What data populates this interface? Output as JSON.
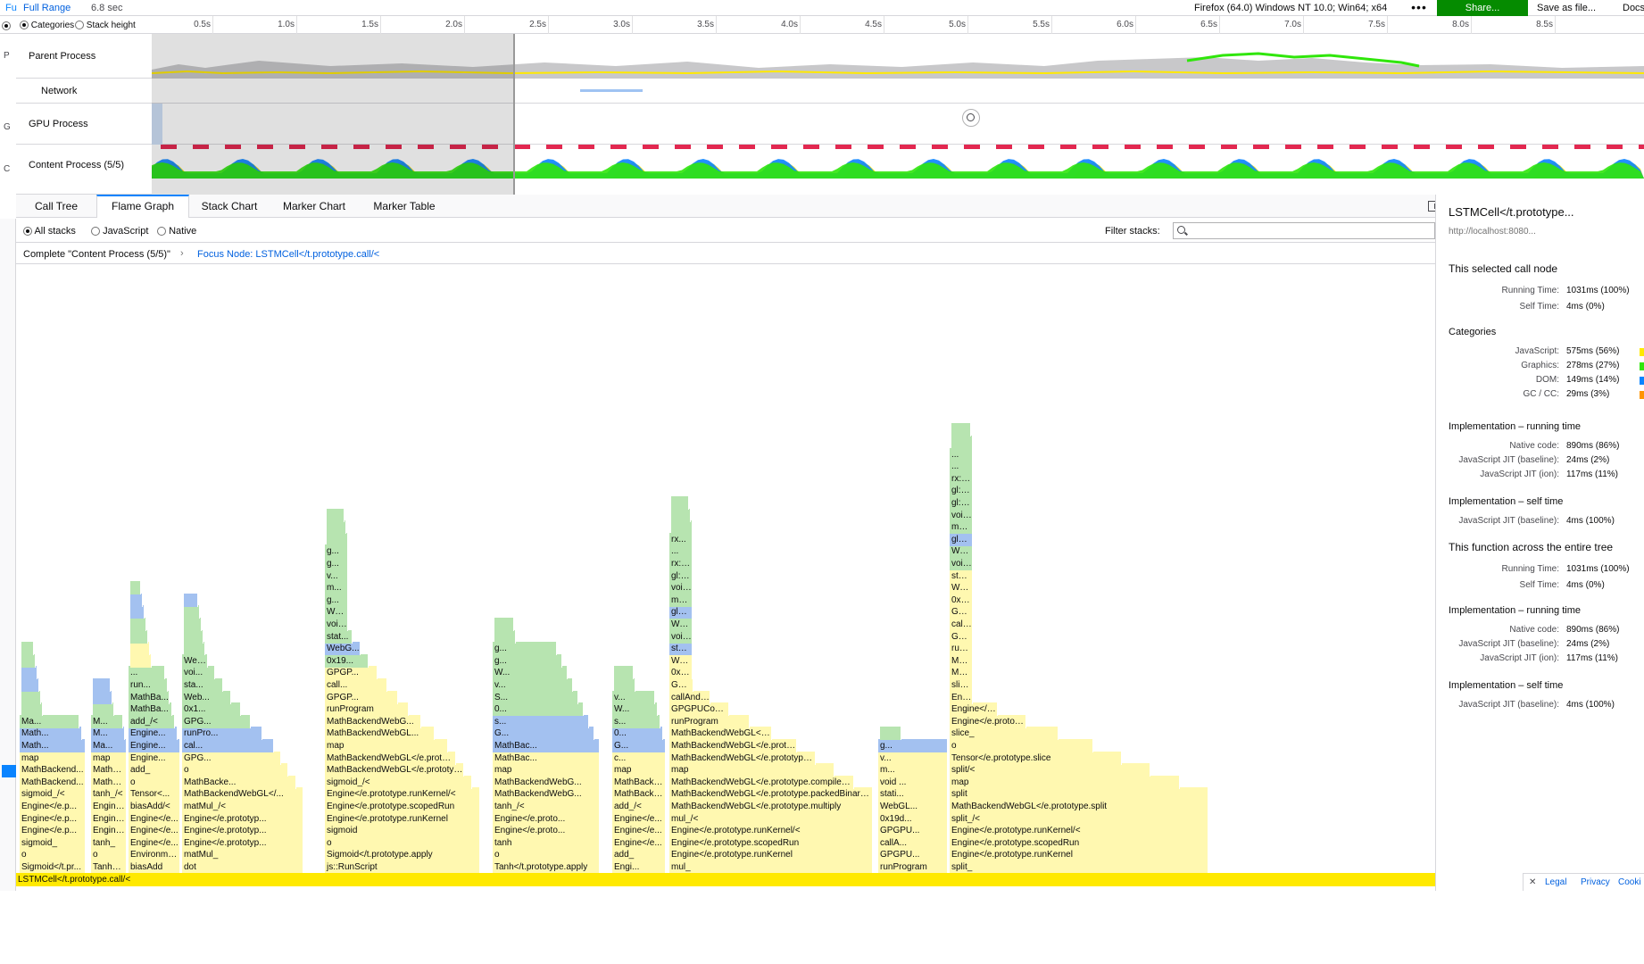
{
  "topbar": {
    "crumb_left": "Fu",
    "range_label": "Full Range",
    "duration": "6.8 sec",
    "platform": "Firefox (64.0) Windows NT 10.0; Win64; x64",
    "more_label": "•••",
    "share_label": "Share...",
    "save_label": "Save as file...",
    "docs_label": "Docs"
  },
  "timeline": {
    "categories_label": "Categories",
    "stack_height_label": "Stack height",
    "ticks": [
      "0.5s",
      "1.0s",
      "1.5s",
      "2.0s",
      "2.5s",
      "3.0s",
      "3.5s",
      "4.0s",
      "4.5s",
      "5.0s",
      "5.5s",
      "6.0s",
      "6.5s",
      "7.0s",
      "7.5s",
      "8.0s",
      "8.5s"
    ],
    "tracks": [
      {
        "label": "Parent Process",
        "strip": "P"
      },
      {
        "label": "Network",
        "strip": ""
      },
      {
        "label": "GPU Process",
        "strip": "G"
      },
      {
        "label": "Content Process (5/5)",
        "strip": "C"
      }
    ],
    "colors": {
      "javascript": "#ffe900",
      "graphics": "#30e60b",
      "dom": "#0a84ff",
      "gc": "#ff9400"
    }
  },
  "tabs": [
    "Call Tree",
    "Flame Graph",
    "Stack Chart",
    "Marker Chart",
    "Marker Table"
  ],
  "selected_tab": "Flame Graph",
  "settings": {
    "all_stacks": "All stacks",
    "javascript": "JavaScript",
    "native": "Native",
    "filter_label": "Filter stacks:",
    "filter_value": ""
  },
  "breadcrumb": {
    "root": "Complete \"Content Process (5/5)\"",
    "focus": "Focus Node: LSTMCell</t.prototype.call/<"
  },
  "flame": {
    "root_label": "LSTMCell</t.prototype.call/<",
    "columns": [
      {
        "frames": [
          "Sigmoid</t.pr...",
          "o",
          "sigmoid_",
          "Engine</e.p...",
          "Engine</e.p...",
          "Engine</e.p...",
          "sigmoid_/<",
          "MathBackend...",
          "MathBackend...",
          "map",
          "Math...",
          "Math...",
          "Ma..."
        ],
        "tops": [
          "g",
          "g",
          "b",
          "b",
          "g",
          "g"
        ]
      },
      {
        "frames": [
          "Tanh</t...",
          "o",
          "tanh_",
          "Engine...",
          "Engine...",
          "Engine...",
          "tanh_/<",
          "MathB...",
          "MathB...",
          "map",
          "Ma...",
          "M...",
          "M..."
        ],
        "tops": [
          "g",
          "b",
          "b"
        ]
      },
      {
        "frames": [
          "biasAdd",
          "Environme...",
          "Engine</e...",
          "Engine</e...",
          "Engine</e...",
          "biasAdd/<",
          "Tensor<...",
          "o",
          "add_",
          "Engine...",
          "Engine...",
          "Engine...",
          "add_/<",
          "MathBa...",
          "MathBa...",
          "run...",
          "..."
        ],
        "tops": [
          "y",
          "y",
          "g",
          "g",
          "b",
          "b",
          "g"
        ]
      },
      {
        "frames": [
          "dot",
          "matMul_",
          "Engine</e.prototyp...",
          "Engine</e.prototyp...",
          "Engine</e.prototyp...",
          "matMul_/<",
          "MathBackendWebGL</...",
          "MathBacke...",
          "o",
          "GPG...",
          "cal...",
          "runPro...",
          "GPG...",
          "0x1...",
          "Web...",
          "sta...",
          "voi...",
          "Web..."
        ],
        "tops": [
          "g",
          "g",
          "g",
          "g",
          "b"
        ]
      },
      {
        "frames": [
          "js::RunScript",
          "Sigmoid</t.prototype.apply",
          "o",
          "sigmoid",
          "Engine</e.prototype.runKernel",
          "Engine</e.prototype.scopedRun",
          "Engine</e.prototype.runKernel/<",
          "sigmoid_/<",
          "MathBackendWebGL</e.prototype.s...",
          "MathBackendWebGL</e.prototype.c...",
          "map",
          "MathBackendWebGL...",
          "MathBackendWebG...",
          "runProgram",
          "GPGP...",
          "call...",
          "GPGP...",
          "0x19...",
          "WebG...",
          "stat...",
          "void...",
          "Web...",
          "g...",
          "m...",
          "v...",
          "g...",
          "g..."
        ],
        "tops": [
          "g",
          "g",
          "g"
        ]
      },
      {
        "frames": [
          "Tanh</t.prototype.apply",
          "o",
          "tanh",
          "Engine</e.proto...",
          "Engine</e.proto...",
          "tanh_/<",
          "MathBackendWebG...",
          "MathBackendWebG...",
          "map",
          "MathBac...",
          "MathBac...",
          "G...",
          "s...",
          "0...",
          "S...",
          "v...",
          "W...",
          "g...",
          "g..."
        ],
        "tops": [
          "g",
          "g"
        ]
      },
      {
        "frames": [
          "Engi...",
          "add_",
          "Engine</e...",
          "Engine</e...",
          "Engine</e...",
          "add_/<",
          "MathBacken...",
          "MathBacken...",
          "map",
          "c...",
          "G...",
          "0...",
          "s...",
          "W...",
          "v..."
        ],
        "tops": [
          "g",
          "g"
        ]
      },
      {
        "frames": [
          "mul_",
          "Engine</e.prototype.runKernel",
          "Engine</e.prototype.scopedRun",
          "Engine</e.prototype.runKernel/<",
          "mul_/<",
          "MathBackendWebGL</e.prototype.multiply",
          "MathBackendWebGL</e.prototype.packedBinaryOp",
          "MathBackendWebGL</e.prototype.compileAndRun",
          "map",
          "MathBackendWebGL</e.prototype.compileA...",
          "MathBackendWebGL</e.prototype.packT...",
          "MathBackendWebGL</e.prototype...",
          "runProgram",
          "GPGPUContext<...",
          "callAndCheck",
          "GPGPUContext<...",
          "0x19da4f49f24",
          "WebGL2Renderi...",
          "static bool m...",
          "void mozilla...",
          "WebGLContext...",
          "glDraw...",
          "mozill...",
          "void m...",
          "gl::Dr...",
          "rx::C...",
          "...",
          "rx..."
        ],
        "tops": [
          "g",
          "g",
          "g"
        ]
      },
      {
        "frames": [
          "runProgram",
          "GPGPU...",
          "callA...",
          "GPGPU...",
          "0x19d...",
          "WebGL...",
          "stati...",
          "void ...",
          "m...",
          "v...",
          "g..."
        ],
        "tops": [
          "g"
        ]
      },
      {
        "frames": [
          "split_",
          "Engine</e.prototype.runKernel",
          "Engine</e.prototype.scopedRun",
          "Engine</e.prototype.runKernel/<",
          "split_/<",
          "MathBackendWebGL</e.prototype.split",
          "split",
          "map",
          "split/<",
          "Tensor</e.prototype.slice",
          "o",
          "slice_",
          "Engine</e.prototype.runKernel",
          "Engine</e.prototype.scopedRun",
          "Engine</e.prototype.runKernel/<",
          "slice_/<",
          "MathBackendWebGL</e.prototype.slice",
          "MathBackendWebGL</e.prototype.compileAndRun",
          "runProgram",
          "GPGPUContext...",
          "callAndCheck",
          "GPGPUContext...",
          "0x19da4f49f24",
          "WebGL2Rende...",
          "static bool...",
          "void mozill...",
          "WebGLContex...",
          "glDraw...",
          "mozill...",
          "void m...",
          "gl::Dr...",
          "gl::C...",
          "rx::C...",
          "...",
          "..."
        ],
        "tops": [
          "g",
          "g"
        ]
      }
    ]
  },
  "sidebar": {
    "title": "LSTMCell</t.prototype...",
    "url": "http://localhost:8080...",
    "selected_heading": "This selected call node",
    "running_time_label": "Running Time:",
    "running_time_value": "1031ms (100%)",
    "self_time_label": "Self Time:",
    "self_time_value": "4ms (0%)",
    "categories_heading": "Categories",
    "categories": [
      {
        "label": "JavaScript:",
        "value": "575ms (56%)",
        "color": "#ffe900"
      },
      {
        "label": "Graphics:",
        "value": "278ms (27%)",
        "color": "#30e60b"
      },
      {
        "label": "DOM:",
        "value": "149ms (14%)",
        "color": "#0a84ff"
      },
      {
        "label": "GC / CC:",
        "value": "29ms (3%)",
        "color": "#ff9400"
      }
    ],
    "impl_running_heading": "Implementation – running time",
    "impl_running": [
      {
        "label": "Native code:",
        "value": "890ms (86%)"
      },
      {
        "label": "JavaScript JIT (baseline):",
        "value": "24ms (2%)"
      },
      {
        "label": "JavaScript JIT (ion):",
        "value": "117ms (11%)"
      }
    ],
    "impl_self_heading": "Implementation – self time",
    "impl_self": [
      {
        "label": "JavaScript JIT (baseline):",
        "value": "4ms (100%)"
      }
    ],
    "entire_heading": "This function across the entire tree",
    "entire_running_value": "1031ms (100%)",
    "entire_self_value": "4ms (0%)",
    "impl_running2": [
      {
        "label": "Native code:",
        "value": "890ms (86%)"
      },
      {
        "label": "JavaScript JIT (baseline):",
        "value": "24ms (2%)"
      },
      {
        "label": "JavaScript JIT (ion):",
        "value": "117ms (11%)"
      }
    ],
    "impl_self2": [
      {
        "label": "JavaScript JIT (baseline):",
        "value": "4ms (100%)"
      }
    ]
  },
  "footer": {
    "close": "✕",
    "legal": "Legal",
    "privacy": "Privacy",
    "cookies": "Cooki"
  }
}
